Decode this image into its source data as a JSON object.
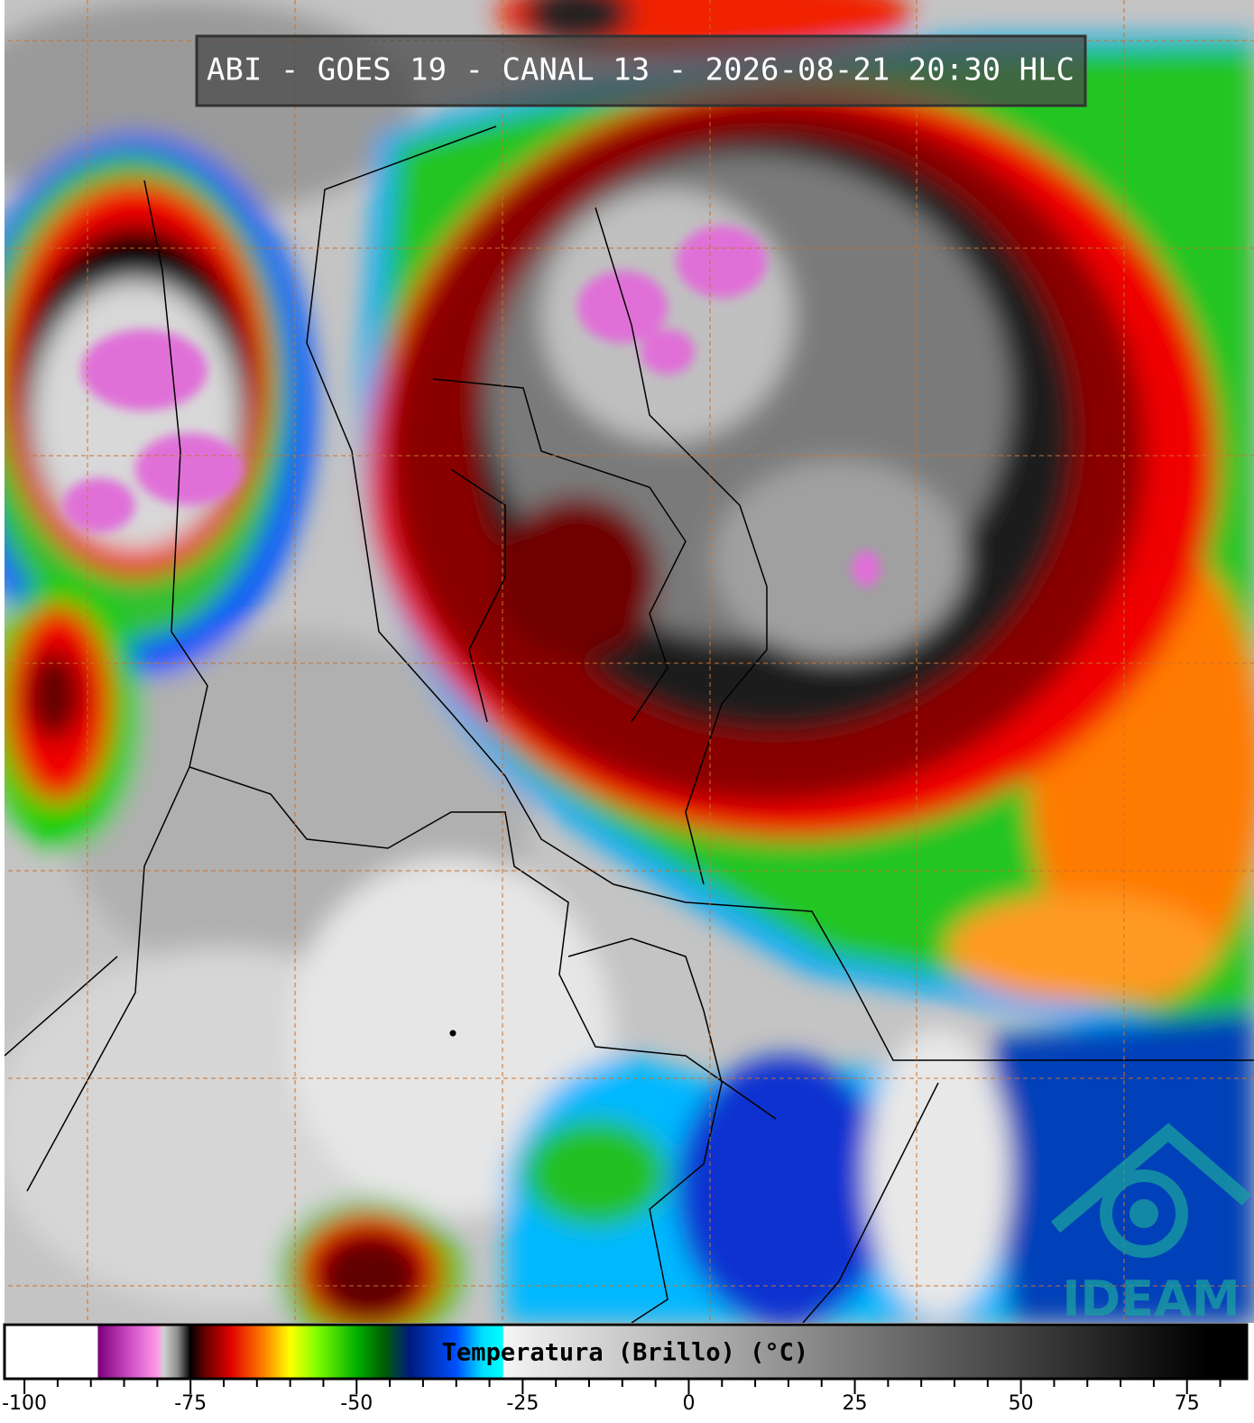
{
  "header": {
    "title": "ABI - GOES 19 - CANAL 13 - 2026-08-21 20:30 HLC"
  },
  "logo": {
    "text": "IDEAM"
  },
  "chart_data": {
    "type": "colorbar",
    "title": "Temperatura (Brillo) (°C)",
    "xlim": [
      -103,
      84
    ],
    "xticks": [
      -100,
      -75,
      -50,
      -25,
      0,
      25,
      50,
      75
    ],
    "xminorticks": [
      -95,
      -90,
      -85,
      -80,
      -70,
      -65,
      -60,
      -55,
      -45,
      -40,
      -35,
      -30,
      -20,
      -15,
      -10,
      -5,
      5,
      10,
      15,
      20,
      30,
      35,
      40,
      45,
      55,
      60,
      65,
      70,
      80
    ],
    "stops": [
      {
        "value": -103,
        "color": "#ffffff"
      },
      {
        "value": -89,
        "color": "#ffffff"
      },
      {
        "value": -88.9,
        "color": "#7a007a"
      },
      {
        "value": -84,
        "color": "#d050c8"
      },
      {
        "value": -80,
        "color": "#ff99e6"
      },
      {
        "value": -79,
        "color": "#d0d0d0"
      },
      {
        "value": -77,
        "color": "#909090"
      },
      {
        "value": -75,
        "color": "#000000"
      },
      {
        "value": -73,
        "color": "#600000"
      },
      {
        "value": -69,
        "color": "#e00000"
      },
      {
        "value": -64,
        "color": "#ff8000"
      },
      {
        "value": -60,
        "color": "#ffff00"
      },
      {
        "value": -56,
        "color": "#80ff00"
      },
      {
        "value": -50,
        "color": "#00b000"
      },
      {
        "value": -46,
        "color": "#006000"
      },
      {
        "value": -42,
        "color": "#001a80"
      },
      {
        "value": -35,
        "color": "#0050ff"
      },
      {
        "value": -31,
        "color": "#00e0ff"
      },
      {
        "value": -28,
        "color": "#00ffff"
      },
      {
        "value": -27.9,
        "color": "#f4f4f4"
      },
      {
        "value": 78,
        "color": "#000000"
      },
      {
        "value": 84,
        "color": "#000000"
      }
    ]
  }
}
